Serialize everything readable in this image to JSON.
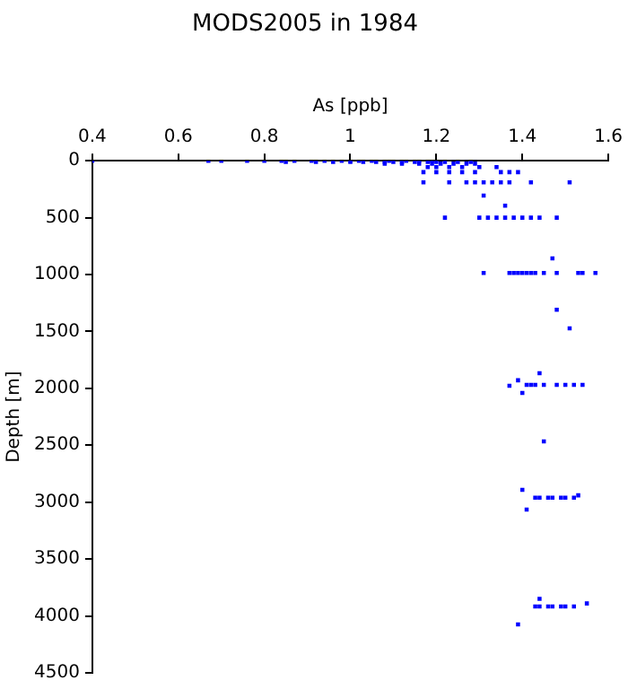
{
  "chart_data": {
    "type": "scatter",
    "title": "MODS2005 in 1984",
    "xlabel": "As [ppb]",
    "ylabel": "Depth [m]",
    "marker": "square",
    "grid": false,
    "xlim": [
      0.4,
      1.6
    ],
    "xticks": [
      0.4,
      0.6,
      0.8,
      1,
      1.2,
      1.4,
      1.6
    ],
    "ylim": [
      4500,
      0
    ],
    "yticks": [
      0,
      500,
      1000,
      1500,
      2000,
      2500,
      3000,
      3500,
      4000,
      4500
    ],
    "series": [
      {
        "color": "#0000ff",
        "x": [
          0.4,
          0.67,
          0.7,
          0.76,
          0.8,
          0.84,
          0.87,
          0.91,
          0.94,
          0.98,
          1.0,
          1.02,
          1.05,
          1.09,
          1.13,
          1.16,
          1.19,
          0.85,
          0.92,
          0.96,
          1.0,
          1.03,
          1.06,
          1.08,
          1.1,
          1.12,
          1.15,
          1.18,
          1.2,
          1.22,
          1.25,
          1.28,
          1.08,
          1.12,
          1.16,
          1.19,
          1.21,
          1.24,
          1.27,
          1.29,
          1.18,
          1.2,
          1.23,
          1.26,
          1.3,
          1.34,
          1.17,
          1.2,
          1.23,
          1.26,
          1.29,
          1.35,
          1.37,
          1.39,
          1.17,
          1.23,
          1.27,
          1.29,
          1.31,
          1.33,
          1.35,
          1.37,
          1.42,
          1.51,
          1.31,
          1.36,
          1.22,
          1.3,
          1.32,
          1.34,
          1.36,
          1.38,
          1.4,
          1.42,
          1.44,
          1.48,
          1.47,
          1.31,
          1.37,
          1.38,
          1.39,
          1.4,
          1.41,
          1.42,
          1.43,
          1.45,
          1.48,
          1.53,
          1.54,
          1.57,
          1.48,
          1.51,
          1.44,
          1.39,
          1.37,
          1.4,
          1.41,
          1.42,
          1.43,
          1.45,
          1.48,
          1.5,
          1.52,
          1.54,
          1.45,
          1.4,
          1.43,
          1.44,
          1.46,
          1.47,
          1.49,
          1.5,
          1.52,
          1.53,
          1.41,
          1.44,
          1.43,
          1.44,
          1.46,
          1.47,
          1.49,
          1.5,
          1.52,
          1.55,
          1.39
        ],
        "values": [
          0,
          0,
          0,
          0,
          0,
          0,
          0,
          0,
          0,
          0,
          0,
          0,
          0,
          0,
          0,
          0,
          0,
          10,
          10,
          10,
          10,
          10,
          10,
          10,
          10,
          10,
          10,
          10,
          10,
          10,
          10,
          10,
          25,
          25,
          25,
          25,
          25,
          25,
          25,
          25,
          55,
          55,
          55,
          55,
          55,
          55,
          100,
          100,
          100,
          100,
          100,
          100,
          100,
          100,
          190,
          190,
          190,
          190,
          190,
          190,
          190,
          190,
          190,
          190,
          305,
          395,
          500,
          500,
          500,
          500,
          500,
          500,
          500,
          500,
          500,
          500,
          857,
          985,
          985,
          985,
          985,
          985,
          985,
          985,
          985,
          985,
          985,
          985,
          985,
          985,
          1309,
          1472,
          1866,
          1929,
          1977,
          2040,
          1970,
          1970,
          1970,
          1970,
          1970,
          1970,
          1970,
          1970,
          2466,
          2892,
          2960,
          2960,
          2960,
          2960,
          2960,
          2960,
          2960,
          2940,
          3065,
          3849,
          3917,
          3917,
          3917,
          3917,
          3917,
          3917,
          3917,
          3890,
          4075
        ]
      }
    ]
  }
}
